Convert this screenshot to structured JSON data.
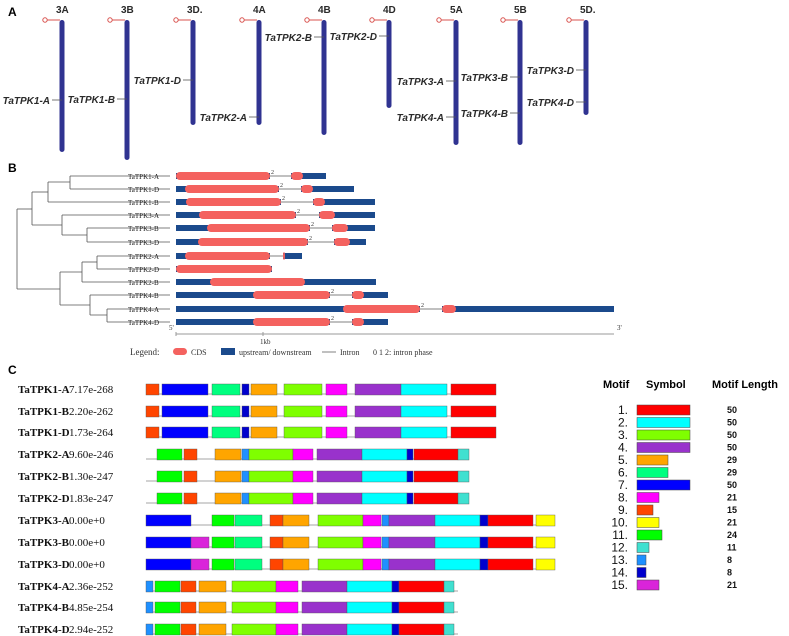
{
  "panel_a": {
    "label": "A",
    "chromosomes": [
      {
        "name": "3A",
        "gene": "TaTPK1-A",
        "len": 132,
        "gene_y": 100
      },
      {
        "name": "3B",
        "gene": "TaTPK1-B",
        "len": 140,
        "gene_y": 99
      },
      {
        "name": "3D.",
        "gene": "TaTPK1-D",
        "len": 105,
        "gene_y": 80
      },
      {
        "name": "4A",
        "gene": "TaTPK2-A",
        "len": 105,
        "gene_y": 117
      },
      {
        "name": "4B",
        "gene": "TaTPK2-B",
        "len": 115,
        "gene_y": 37
      },
      {
        "name": "4D",
        "gene": "TaTPK2-D",
        "len": 88,
        "gene_y": 36
      },
      {
        "name": "5A",
        "gene_pair": [
          "TaTPK3-A",
          "TaTPK4-A"
        ],
        "len": 125,
        "gene_ys": [
          81,
          117
        ]
      },
      {
        "name": "5B",
        "gene_pair": [
          "TaTPK3-B",
          "TaTPK4-B"
        ],
        "len": 125,
        "gene_ys": [
          77,
          113
        ]
      },
      {
        "name": "5D.",
        "gene_pair": [
          "TaTPK3-D",
          "TaTPK4-D"
        ],
        "len": 95,
        "gene_ys": [
          70,
          102
        ]
      }
    ]
  },
  "panel_b": {
    "label": "B",
    "end5": "5'",
    "end3": "3'",
    "scale_label": "1kb",
    "legend_title": "Legend:",
    "legend_cds": "CDS",
    "legend_utr": "upstream/ downstream",
    "legend_intron": "Intron",
    "legend_phase": "0 1 2: intron phase",
    "genes": [
      {
        "name": "TaTPK1-A",
        "end": 326,
        "cds": [
          [
            176,
            270
          ],
          [
            291,
            303
          ]
        ],
        "phase": "2"
      },
      {
        "name": "TaTPK1-D",
        "end": 354,
        "cds": [
          [
            185,
            279
          ],
          [
            301,
            313
          ]
        ],
        "phase": "2"
      },
      {
        "name": "TaTPK1-B",
        "end": 375,
        "cds": [
          [
            186,
            281
          ],
          [
            313,
            325
          ]
        ],
        "phase": "2"
      },
      {
        "name": "TaTPK3-A",
        "end": 375,
        "cds": [
          [
            199,
            296
          ],
          [
            319,
            335
          ]
        ],
        "phase": "2"
      },
      {
        "name": "TaTPK3-B",
        "end": 375,
        "cds": [
          [
            207,
            310
          ],
          [
            332,
            348
          ]
        ],
        "phase": "2"
      },
      {
        "name": "TaTPK3-D",
        "end": 366,
        "cds": [
          [
            198,
            308
          ],
          [
            334,
            350
          ]
        ],
        "phase": "2"
      },
      {
        "name": "TaTPK2-A",
        "end": 302,
        "cds": [
          [
            185,
            270
          ],
          [
            283,
            285
          ]
        ],
        "phase": ""
      },
      {
        "name": "TaTPK2-D",
        "end": 272,
        "cds": [
          [
            176,
            272
          ]
        ],
        "phase": ""
      },
      {
        "name": "TaTPK2-B",
        "end": 376,
        "cds": [
          [
            210,
            305
          ]
        ],
        "phase": ""
      },
      {
        "name": "TaTPK4-B",
        "end": 388,
        "cds": [
          [
            253,
            330
          ],
          [
            352,
            364
          ]
        ],
        "phase": "2"
      },
      {
        "name": "TaTPK4-A",
        "end": 614,
        "cds": [
          [
            343,
            420
          ],
          [
            442,
            456
          ]
        ],
        "phase": "2"
      },
      {
        "name": "TaTPK4-D",
        "end": 388,
        "cds": [
          [
            253,
            330
          ],
          [
            352,
            364
          ]
        ],
        "phase": "2"
      }
    ]
  },
  "panel_c": {
    "label": "C",
    "header_motif": "Motif",
    "header_symbol": "Symbol",
    "header_length": "Motif Length",
    "rows": [
      {
        "name": "TaTPK1-A",
        "pvalue": "7.17e-268",
        "line_end": 495,
        "motifs": [
          [
            9,
            146,
            13
          ],
          [
            7,
            162,
            46
          ],
          [
            6,
            212,
            28
          ],
          [
            14,
            242,
            7
          ],
          [
            5,
            251,
            26
          ],
          [
            3,
            284,
            38
          ],
          [
            8,
            326,
            21
          ],
          [
            4,
            355,
            46
          ],
          [
            2,
            401,
            46
          ],
          [
            1,
            451,
            45
          ]
        ]
      },
      {
        "name": "TaTPK1-B",
        "pvalue": "2.20e-262",
        "line_end": 495,
        "motifs": [
          [
            9,
            146,
            13
          ],
          [
            7,
            162,
            46
          ],
          [
            6,
            212,
            28
          ],
          [
            14,
            242,
            7
          ],
          [
            5,
            251,
            26
          ],
          [
            3,
            284,
            38
          ],
          [
            8,
            326,
            21
          ],
          [
            4,
            355,
            46
          ],
          [
            2,
            401,
            46
          ],
          [
            1,
            451,
            45
          ]
        ]
      },
      {
        "name": "TaTPK1-D",
        "pvalue": "1.73e-264",
        "line_end": 495,
        "motifs": [
          [
            9,
            146,
            13
          ],
          [
            7,
            162,
            46
          ],
          [
            6,
            212,
            28
          ],
          [
            14,
            242,
            7
          ],
          [
            5,
            251,
            26
          ],
          [
            3,
            284,
            38
          ],
          [
            8,
            326,
            21
          ],
          [
            4,
            355,
            46
          ],
          [
            2,
            401,
            46
          ],
          [
            1,
            451,
            45
          ]
        ]
      },
      {
        "name": "TaTPK2-A",
        "pvalue": "9.60e-246",
        "line_end": 468,
        "motifs": [
          [
            11,
            157,
            25
          ],
          [
            9,
            184,
            13
          ],
          [
            5,
            215,
            26
          ],
          [
            13,
            242,
            7
          ],
          [
            3,
            249,
            44
          ],
          [
            8,
            293,
            20
          ],
          [
            4,
            317,
            45
          ],
          [
            2,
            362,
            45
          ],
          [
            14,
            407,
            6
          ],
          [
            1,
            414,
            44
          ],
          [
            12,
            458,
            11
          ]
        ]
      },
      {
        "name": "TaTPK2-B",
        "pvalue": "1.30e-247",
        "line_end": 468,
        "motifs": [
          [
            11,
            157,
            25
          ],
          [
            9,
            184,
            13
          ],
          [
            5,
            215,
            26
          ],
          [
            13,
            242,
            7
          ],
          [
            3,
            249,
            44
          ],
          [
            8,
            293,
            20
          ],
          [
            4,
            317,
            45
          ],
          [
            2,
            362,
            45
          ],
          [
            14,
            407,
            6
          ],
          [
            1,
            414,
            44
          ],
          [
            12,
            458,
            11
          ]
        ]
      },
      {
        "name": "TaTPK2-D",
        "pvalue": "1.83e-247",
        "line_end": 468,
        "motifs": [
          [
            11,
            157,
            25
          ],
          [
            9,
            184,
            13
          ],
          [
            5,
            215,
            26
          ],
          [
            13,
            242,
            7
          ],
          [
            3,
            249,
            44
          ],
          [
            8,
            293,
            20
          ],
          [
            4,
            317,
            45
          ],
          [
            2,
            362,
            45
          ],
          [
            14,
            407,
            6
          ],
          [
            1,
            414,
            44
          ],
          [
            12,
            458,
            11
          ]
        ]
      },
      {
        "name": "TaTPK3-A",
        "pvalue": "0.00e+0",
        "line_end": 555,
        "motifs": [
          [
            7,
            146,
            45
          ],
          [
            11,
            212,
            22
          ],
          [
            6,
            235,
            27
          ],
          [
            9,
            270,
            13
          ],
          [
            5,
            283,
            26
          ],
          [
            3,
            318,
            45
          ],
          [
            8,
            363,
            18
          ],
          [
            13,
            382,
            7
          ],
          [
            4,
            389,
            46
          ],
          [
            2,
            435,
            45
          ],
          [
            14,
            480,
            8
          ],
          [
            1,
            488,
            45
          ],
          [
            10,
            536,
            19
          ]
        ]
      },
      {
        "name": "TaTPK3-B",
        "pvalue": "0.00e+0",
        "line_end": 555,
        "motifs": [
          [
            7,
            146,
            45
          ],
          [
            15,
            191,
            18
          ],
          [
            11,
            212,
            22
          ],
          [
            6,
            235,
            27
          ],
          [
            9,
            270,
            13
          ],
          [
            5,
            283,
            26
          ],
          [
            3,
            318,
            45
          ],
          [
            8,
            363,
            18
          ],
          [
            13,
            382,
            7
          ],
          [
            4,
            389,
            46
          ],
          [
            2,
            435,
            45
          ],
          [
            14,
            480,
            8
          ],
          [
            1,
            488,
            45
          ],
          [
            10,
            536,
            19
          ]
        ]
      },
      {
        "name": "TaTPK3-D",
        "pvalue": "0.00e+0",
        "line_end": 555,
        "motifs": [
          [
            7,
            146,
            45
          ],
          [
            15,
            191,
            18
          ],
          [
            11,
            212,
            22
          ],
          [
            6,
            235,
            27
          ],
          [
            9,
            270,
            13
          ],
          [
            5,
            283,
            26
          ],
          [
            3,
            318,
            45
          ],
          [
            8,
            363,
            18
          ],
          [
            13,
            382,
            7
          ],
          [
            4,
            389,
            46
          ],
          [
            2,
            435,
            45
          ],
          [
            14,
            480,
            8
          ],
          [
            1,
            488,
            45
          ],
          [
            10,
            536,
            19
          ]
        ]
      },
      {
        "name": "TaTPK4-A",
        "pvalue": "2.36e-252",
        "line_end": 458,
        "motifs": [
          [
            13,
            146,
            7
          ],
          [
            11,
            155,
            25
          ],
          [
            9,
            181,
            15
          ],
          [
            5,
            199,
            27
          ],
          [
            3,
            232,
            44
          ],
          [
            8,
            276,
            22
          ],
          [
            4,
            302,
            45
          ],
          [
            2,
            347,
            45
          ],
          [
            14,
            392,
            7
          ],
          [
            1,
            399,
            45
          ],
          [
            12,
            444,
            10
          ]
        ]
      },
      {
        "name": "TaTPK4-B",
        "pvalue": "4.85e-254",
        "line_end": 458,
        "motifs": [
          [
            13,
            146,
            7
          ],
          [
            11,
            155,
            25
          ],
          [
            9,
            181,
            15
          ],
          [
            5,
            199,
            27
          ],
          [
            3,
            232,
            44
          ],
          [
            8,
            276,
            22
          ],
          [
            4,
            302,
            45
          ],
          [
            2,
            347,
            45
          ],
          [
            14,
            392,
            7
          ],
          [
            1,
            399,
            45
          ],
          [
            12,
            444,
            10
          ]
        ]
      },
      {
        "name": "TaTPK4-D",
        "pvalue": "2.94e-252",
        "line_end": 458,
        "motifs": [
          [
            13,
            146,
            7
          ],
          [
            11,
            155,
            25
          ],
          [
            9,
            181,
            15
          ],
          [
            5,
            199,
            27
          ],
          [
            3,
            232,
            44
          ],
          [
            8,
            276,
            22
          ],
          [
            4,
            302,
            45
          ],
          [
            2,
            347,
            45
          ],
          [
            14,
            392,
            7
          ],
          [
            1,
            399,
            45
          ],
          [
            12,
            444,
            10
          ]
        ]
      }
    ],
    "motif_legend": [
      {
        "num": "1.",
        "length": "50",
        "color": "#ff0000",
        "w": 53
      },
      {
        "num": "2.",
        "length": "50",
        "color": "#00ffff",
        "w": 53
      },
      {
        "num": "3.",
        "length": "50",
        "color": "#7fff00",
        "w": 53
      },
      {
        "num": "4.",
        "length": "50",
        "color": "#9932cc",
        "w": 53
      },
      {
        "num": "5.",
        "length": "29",
        "color": "#ffa500",
        "w": 31
      },
      {
        "num": "6.",
        "length": "29",
        "color": "#00ff7f",
        "w": 31
      },
      {
        "num": "7.",
        "length": "50",
        "color": "#0000ff",
        "w": 53
      },
      {
        "num": "8.",
        "length": "21",
        "color": "#ff00ff",
        "w": 22
      },
      {
        "num": "9.",
        "length": "15",
        "color": "#ff4500",
        "w": 16
      },
      {
        "num": "10.",
        "length": "21",
        "color": "#ffff00",
        "w": 22
      },
      {
        "num": "11.",
        "length": "24",
        "color": "#00ff00",
        "w": 25
      },
      {
        "num": "12.",
        "length": "11",
        "color": "#40e0d0",
        "w": 12
      },
      {
        "num": "13.",
        "length": "8",
        "color": "#1e90ff",
        "w": 9
      },
      {
        "num": "14.",
        "length": "8",
        "color": "#0000cd",
        "w": 9
      },
      {
        "num": "15.",
        "length": "21",
        "color": "#da24da",
        "w": 22
      }
    ]
  },
  "colors": {
    "chromosome": "#303391",
    "centromere": "#d9534f",
    "cds": "#f4625f",
    "utr": "#1b4a8c",
    "line": "#808080"
  }
}
